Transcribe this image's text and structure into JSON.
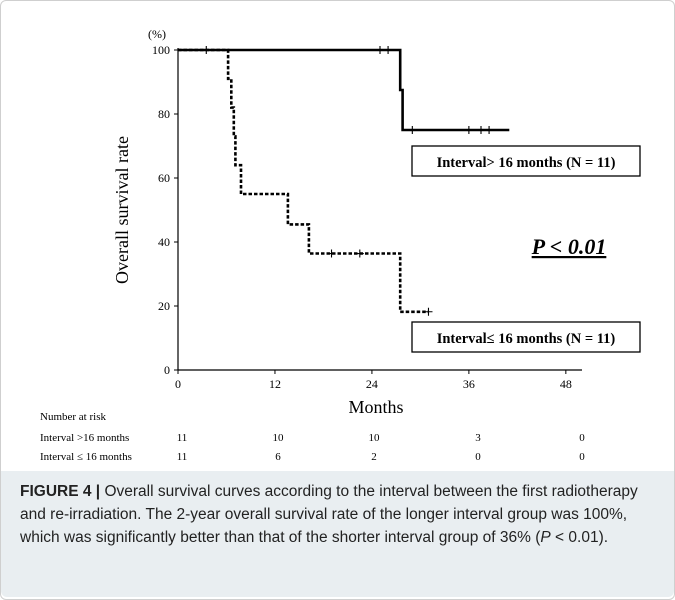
{
  "chart_data": {
    "type": "line",
    "step": true,
    "y_unit": "(%)",
    "xlabel": "Months",
    "ylabel": "Overall survival rate",
    "xlim": [
      0,
      50
    ],
    "ylim": [
      0,
      100
    ],
    "x_ticks": [
      0,
      12,
      24,
      36,
      48
    ],
    "y_ticks": [
      0,
      20,
      40,
      60,
      80,
      100
    ],
    "series": [
      {
        "name": "Interval> 16 months (N = 11)",
        "style": "solid",
        "points": [
          [
            0,
            100
          ],
          [
            27.5,
            100
          ],
          [
            27.5,
            87.5
          ],
          [
            27.8,
            87.5
          ],
          [
            27.8,
            75
          ],
          [
            41,
            75
          ]
        ],
        "censored": [
          [
            3.5,
            100
          ],
          [
            26,
            100
          ],
          [
            25,
            100
          ],
          [
            29,
            75
          ],
          [
            36,
            75
          ],
          [
            37.5,
            75
          ],
          [
            38.5,
            75
          ]
        ]
      },
      {
        "name": "Interval≤ 16 months (N = 11)",
        "style": "dashed",
        "points": [
          [
            0,
            100
          ],
          [
            6.2,
            100
          ],
          [
            6.2,
            91
          ],
          [
            6.6,
            91
          ],
          [
            6.6,
            82
          ],
          [
            6.9,
            82
          ],
          [
            6.9,
            73
          ],
          [
            7.1,
            73
          ],
          [
            7.1,
            64
          ],
          [
            7.8,
            64
          ],
          [
            7.8,
            55
          ],
          [
            13.6,
            55
          ],
          [
            13.6,
            45.5
          ],
          [
            16.2,
            45.5
          ],
          [
            16.2,
            36.4
          ],
          [
            27.5,
            36.4
          ],
          [
            27.5,
            18.2
          ],
          [
            31,
            18.2
          ]
        ],
        "censored": [
          [
            19,
            36.4
          ],
          [
            22.5,
            36.4
          ],
          [
            31,
            18.2
          ]
        ]
      }
    ],
    "annotation": "P < 0.01"
  },
  "risk_table": {
    "title": "Number at risk",
    "rows": [
      {
        "label": "Interval >16 months",
        "values": [
          "11",
          "10",
          "10",
          "3",
          "0"
        ]
      },
      {
        "label": "Interval ≤ 16 months",
        "values": [
          "11",
          "6",
          "2",
          "0",
          "0"
        ]
      }
    ]
  },
  "caption": {
    "label": "FIGURE 4 |",
    "text_a": " Overall survival curves according to the interval between the first radiotherapy and re-irradiation. The 2-year overall survival rate of the longer interval group was 100%, which was significantly better than that of the shorter interval group of 36% (",
    "p_italic": "P",
    "text_b": " < 0.01)."
  }
}
